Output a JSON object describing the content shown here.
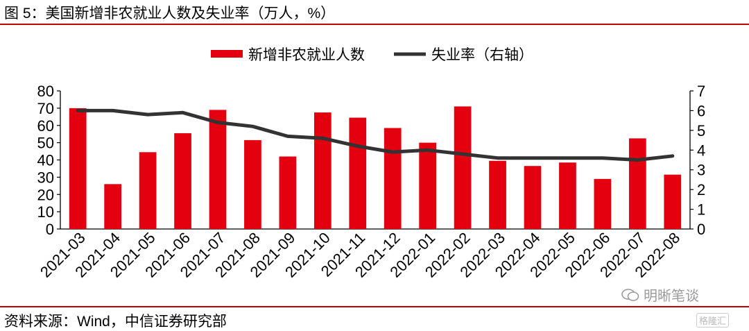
{
  "header": {
    "title": "图 5：美国新增非农就业人数及失业率（万人，%）"
  },
  "footer": {
    "source": "资料来源：Wind，中信证券研究部"
  },
  "watermark": {
    "text": "明晰笔谈",
    "badge": "格隆汇"
  },
  "colors": {
    "bar": "#e3000f",
    "line": "#333333",
    "rule": "#c00000"
  },
  "chart_data": {
    "type": "bar",
    "categories": [
      "2021-03",
      "2021-04",
      "2021-05",
      "2021-06",
      "2021-07",
      "2021-08",
      "2021-09",
      "2021-10",
      "2021-11",
      "2021-12",
      "2022-01",
      "2022-02",
      "2022-03",
      "2022-04",
      "2022-05",
      "2022-06",
      "2022-07",
      "2022-08"
    ],
    "series": [
      {
        "name": "新增非农就业人数",
        "type": "bar",
        "axis": "left",
        "values": [
          70,
          26,
          44.5,
          55.5,
          69,
          51.5,
          42,
          67.5,
          64.5,
          58.5,
          50,
          71,
          39.5,
          36.5,
          38.5,
          29,
          52.5,
          31.5
        ]
      },
      {
        "name": "失业率（右轴）",
        "type": "line",
        "axis": "right",
        "values": [
          6.0,
          6.0,
          5.8,
          5.9,
          5.4,
          5.2,
          4.7,
          4.6,
          4.2,
          3.9,
          4.0,
          3.8,
          3.6,
          3.6,
          3.6,
          3.6,
          3.5,
          3.7
        ]
      }
    ],
    "ylim_left": [
      0,
      80
    ],
    "yticks_left": [
      "0",
      "10",
      "20",
      "30",
      "40",
      "50",
      "60",
      "70",
      "80"
    ],
    "ylim_right": [
      0,
      7
    ],
    "yticks_right": [
      "0",
      "1",
      "2",
      "3",
      "4",
      "5",
      "6",
      "7"
    ],
    "legend_position": "top-center",
    "grid": false
  }
}
